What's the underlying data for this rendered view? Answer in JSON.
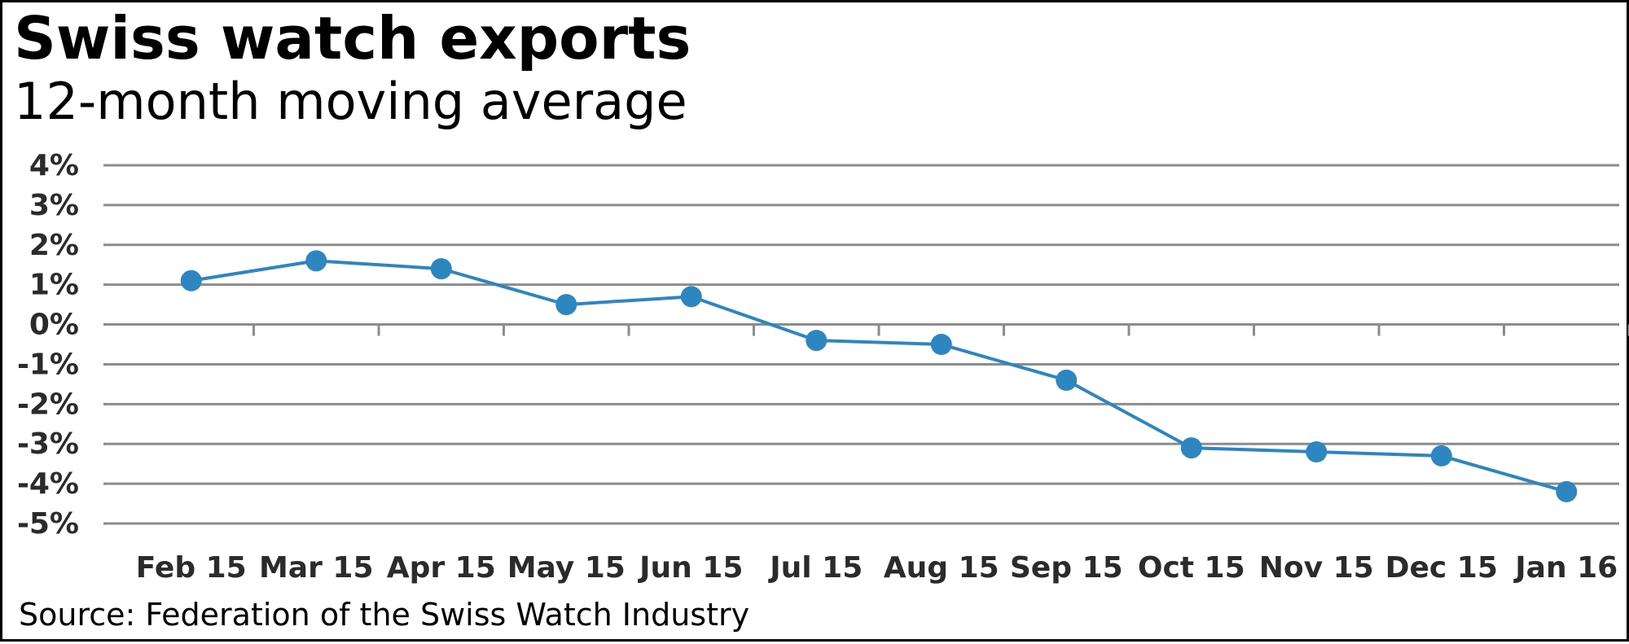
{
  "header": {
    "title": "Swiss watch exports",
    "subtitle": "12-month moving average"
  },
  "footer": {
    "source": "Source: Federation of the Swiss Watch Industry"
  },
  "chart_data": {
    "type": "line",
    "title": "Swiss watch exports",
    "subtitle": "12-month moving average",
    "xlabel": "",
    "ylabel": "",
    "categories": [
      "Feb 15",
      "Mar 15",
      "Apr 15",
      "May 15",
      "Jun 15",
      "Jul 15",
      "Aug 15",
      "Sep 15",
      "Oct 15",
      "Nov 15",
      "Dec 15",
      "Jan 16"
    ],
    "series": [
      {
        "values": [
          1.1,
          1.6,
          1.4,
          0.5,
          0.7,
          -0.4,
          -0.5,
          -1.4,
          -3.1,
          -3.2,
          -3.3,
          -4.2
        ],
        "color": "#2e86c1"
      }
    ],
    "ylim": [
      -5,
      4
    ],
    "y_ticks": [
      4,
      3,
      2,
      1,
      0,
      -1,
      -2,
      -3,
      -4,
      -5
    ],
    "y_tick_labels": [
      "4%",
      "3%",
      "2%",
      "1%",
      "0%",
      "-1%",
      "-2%",
      "-3%",
      "-4%",
      "-5%"
    ],
    "grid": true,
    "gridline_color": "#8c8c8c",
    "legend": "none",
    "source": "Source: Federation of the Swiss Watch Industry"
  }
}
